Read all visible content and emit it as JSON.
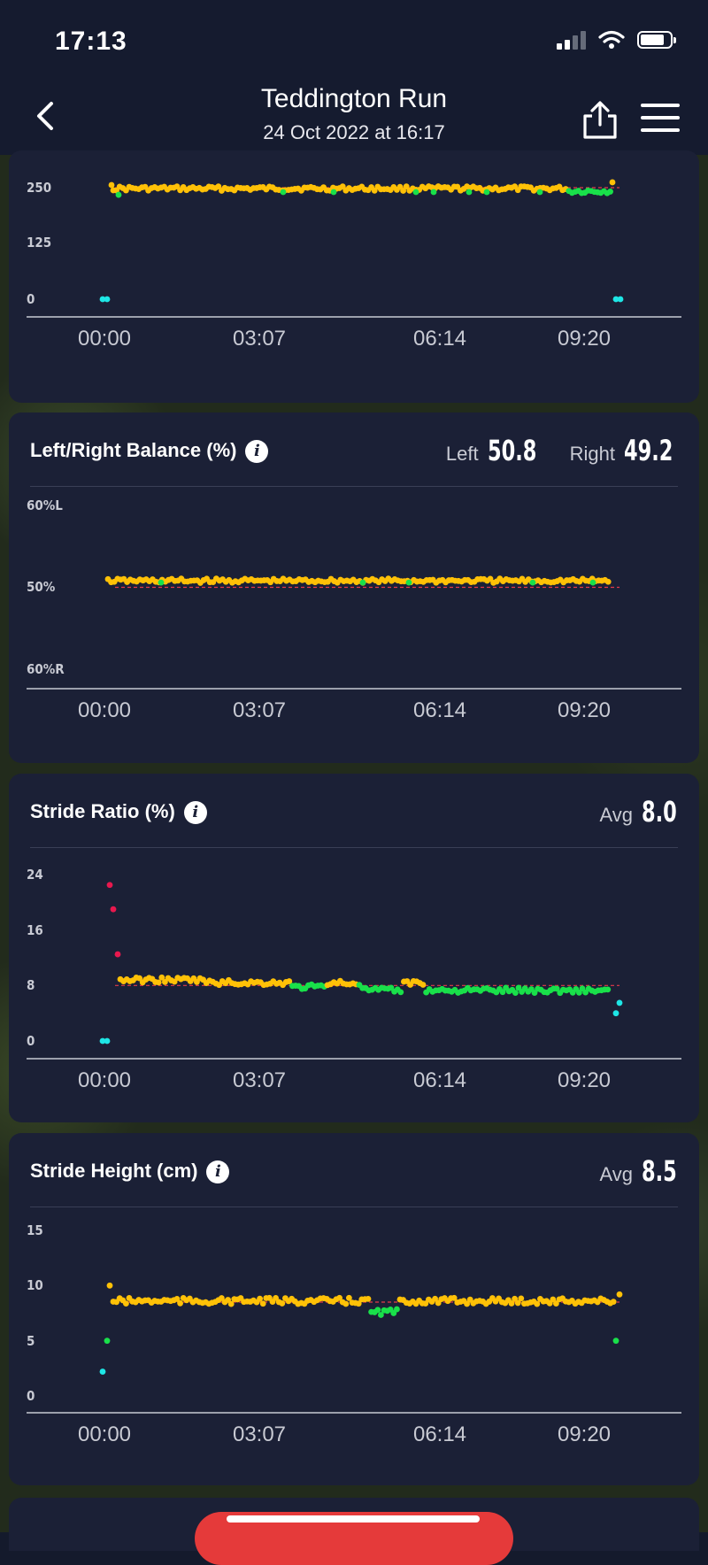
{
  "status_bar": {
    "time": "17:13"
  },
  "nav": {
    "title": "Teddington Run",
    "subtitle": "24 Oct 2022 at 16:17"
  },
  "colors": {
    "on_target": "#ffc107",
    "good": "#19e04a",
    "high": "#e8184e",
    "low": "#1ee6e6",
    "reference_line": "#e23a4a",
    "card_bg": "#1b2036"
  },
  "icons": [
    "back-icon",
    "share-icon",
    "menu-icon",
    "info-icon",
    "signal-icon",
    "wifi-icon",
    "battery-icon"
  ],
  "cards": [
    {
      "id": "cadence",
      "title": "",
      "chart_data": {
        "type": "scatter",
        "x_ticks": [
          "00:00",
          "03:07",
          "06:14",
          "09:20"
        ],
        "y_ticks": [
          "250",
          "125",
          "0"
        ],
        "ylim": [
          0,
          250
        ],
        "reference_line": 250,
        "series": [
          {
            "color": "on_target",
            "values": [
              [
                0.05,
                256
              ],
              [
                0.3,
                248
              ],
              [
                0.6,
                248
              ],
              [
                0.95,
                253
              ],
              [
                1.0,
                260
              ]
            ]
          },
          {
            "color": "good",
            "values": [
              [
                0.08,
                237
              ],
              [
                1.0,
                238
              ]
            ]
          },
          {
            "color": "low",
            "values": [
              [
                0.0,
                0
              ],
              [
                10.0,
                0
              ]
            ]
          }
        ]
      }
    },
    {
      "id": "balance",
      "title": "Left/Right Balance (%)",
      "stats": [
        {
          "label": "Left",
          "value": "50.8"
        },
        {
          "label": "Right",
          "value": "49.2"
        }
      ],
      "chart_data": {
        "type": "scatter",
        "x_ticks": [
          "00:00",
          "03:07",
          "06:14",
          "09:20"
        ],
        "y_ticks": [
          "60%L",
          "50%",
          "60%R"
        ],
        "reference_line": 50,
        "series": [
          {
            "color": "on_target",
            "value": 50.8
          }
        ]
      }
    },
    {
      "id": "stride_ratio",
      "title": "Stride Ratio (%)",
      "stats": [
        {
          "label": "Avg",
          "value": "8.0"
        }
      ],
      "chart_data": {
        "type": "scatter",
        "x_ticks": [
          "00:00",
          "03:07",
          "06:14",
          "09:20"
        ],
        "y_ticks": [
          "24",
          "16",
          "8",
          "0"
        ],
        "ylim": [
          0,
          24
        ],
        "reference_line": 8,
        "series": [
          {
            "color": "high",
            "values": [
              22.5,
              19,
              12.5
            ]
          },
          {
            "color": "on_target",
            "values": [
              8.5
            ]
          },
          {
            "color": "good",
            "values": [
              7.3
            ]
          },
          {
            "color": "low",
            "values": [
              0,
              5.5,
              4
            ]
          }
        ]
      }
    },
    {
      "id": "stride_height",
      "title": "Stride Height (cm)",
      "stats": [
        {
          "label": "Avg",
          "value": "8.5"
        }
      ],
      "chart_data": {
        "type": "scatter",
        "x_ticks": [
          "00:00",
          "03:07",
          "06:14",
          "09:20"
        ],
        "y_ticks": [
          "15",
          "10",
          "5",
          "0"
        ],
        "ylim": [
          0,
          15
        ],
        "reference_line": 8.5,
        "series": [
          {
            "color": "on_target",
            "values": [
              8.6
            ]
          },
          {
            "color": "good",
            "values": [
              5,
              7.3
            ]
          },
          {
            "color": "low",
            "values": [
              2.2
            ]
          }
        ]
      }
    }
  ]
}
